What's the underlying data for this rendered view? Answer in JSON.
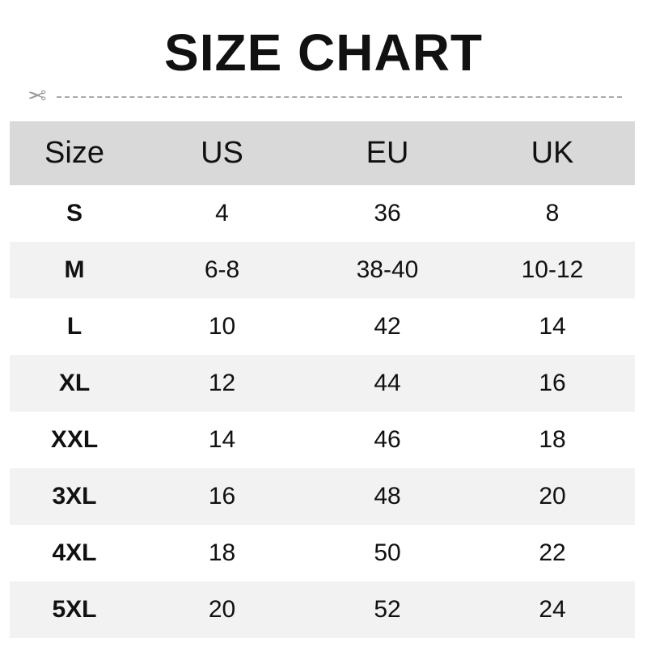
{
  "title": "SIZE CHART",
  "icons": {
    "cut": "scissors-icon"
  },
  "colors": {
    "header_bg": "#d9d9d9",
    "alt_row_bg": "#f2f2f2"
  },
  "table": {
    "headers": [
      "Size",
      "US",
      "EU",
      "UK"
    ],
    "rows": [
      [
        "S",
        "4",
        "36",
        "8"
      ],
      [
        "M",
        "6-8",
        "38-40",
        "10-12"
      ],
      [
        "L",
        "10",
        "42",
        "14"
      ],
      [
        "XL",
        "12",
        "44",
        "16"
      ],
      [
        "XXL",
        "14",
        "46",
        "18"
      ],
      [
        "3XL",
        "16",
        "48",
        "20"
      ],
      [
        "4XL",
        "18",
        "50",
        "22"
      ],
      [
        "5XL",
        "20",
        "52",
        "24"
      ]
    ]
  }
}
